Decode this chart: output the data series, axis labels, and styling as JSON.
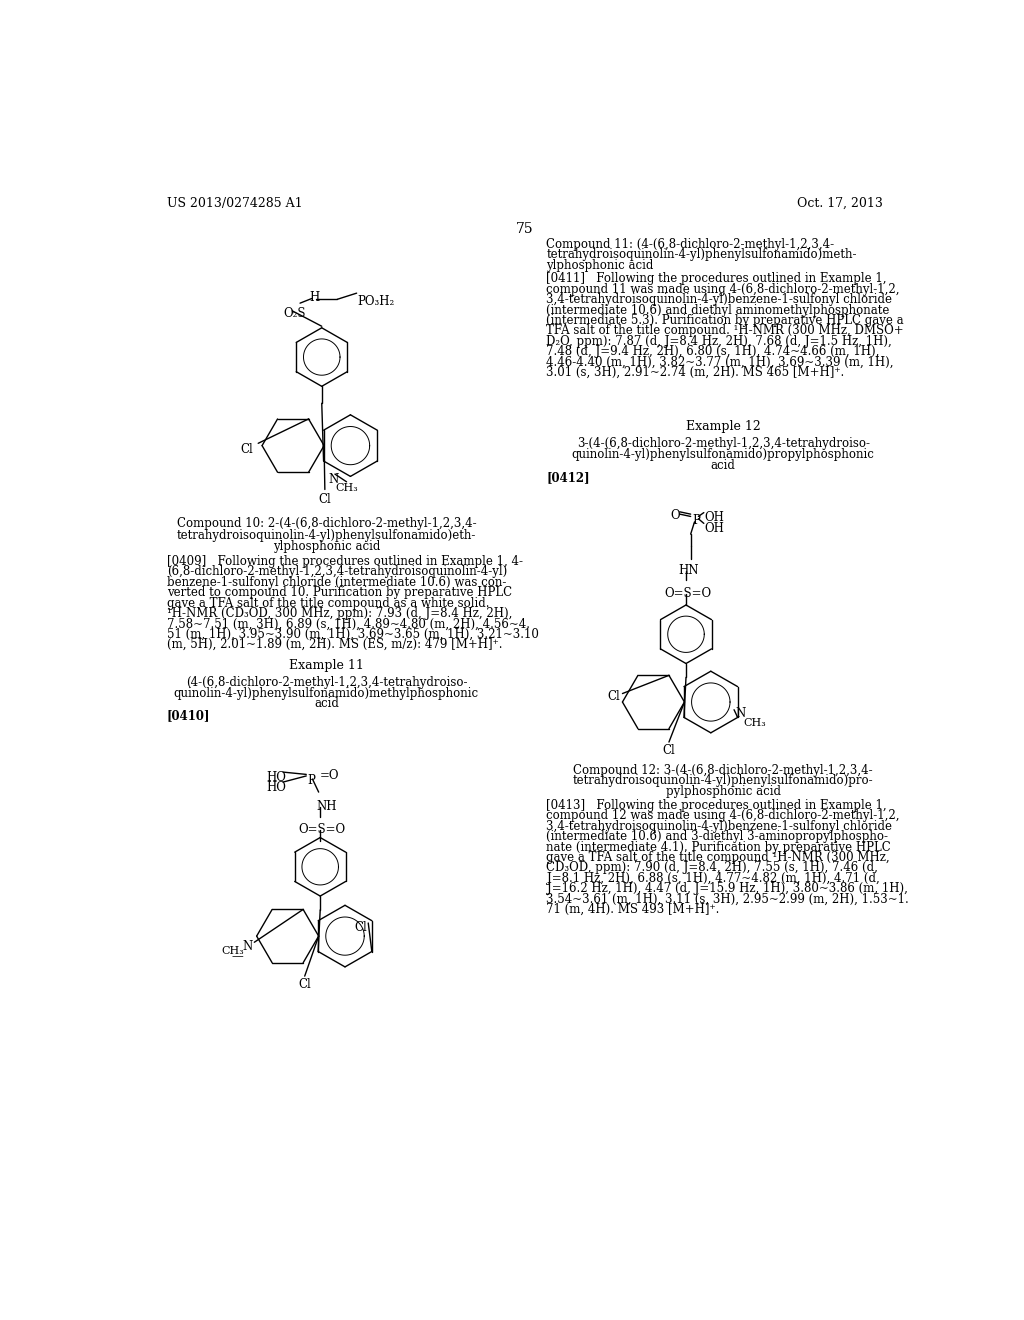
{
  "patent_number": "US 2013/0274285 A1",
  "patent_date": "Oct. 17, 2013",
  "page_number": "75",
  "background_color": "#ffffff",
  "compound10_caption": [
    "Compound 10: 2-(4-(6,8-dichloro-2-methyl-1,2,3,4-",
    "tetrahydroisoquinolin-4-yl)phenylsulfonamido)eth-",
    "ylphosphonic acid"
  ],
  "compound12_caption": [
    "Compound 12: 3-(4-(6,8-dichloro-2-methyl-1,2,3,4-",
    "tetrahydroisoquinolin-4-yl)phenylsulfonamido)pro-",
    "pylphosphonic acid"
  ],
  "compound11_title": [
    "Compound 11: (4-(6,8-dichloro-2-methyl-1,2,3,4-",
    "tetrahydroisoquinolin-4-yl)phenylsulfonamido)meth-",
    "ylphosphonic acid"
  ],
  "para0409": [
    "[0409]   Following the procedures outlined in Example 1, 4-",
    "(6,8-dichloro-2-methyl-1,2,3,4-tetrahydroisoquinolin-4-yl)",
    "benzene-1-sulfonyl chloride (intermediate 10.6) was con-",
    "verted to compound 10. Purification by preparative HPLC",
    "gave a TFA salt of the title compound as a white solid.",
    "¹H-NMR (CD₃OD, 300 MHz, ppm): 7.93 (d, J=8.4 Hz, 2H),",
    "7.58~7.51 (m, 3H), 6.89 (s, 1H), 4.89~4.80 (m, 2H), 4.56~4.",
    "51 (m, 1H), 3.95~3.90 (m, 1H), 3.69~3.65 (m, 1H), 3.21~3.10",
    "(m, 5H), 2.01~1.89 (m, 2H). MS (ES, m/z): 479 [M+H]⁺."
  ],
  "ex11_title": [
    "(4-(6,8-dichloro-2-methyl-1,2,3,4-tetrahydroiso-",
    "quinolin-4-yl)phenylsulfonamido)methylphosphonic",
    "acid"
  ],
  "para0410_tag": "[0410]",
  "example11": "Example 11",
  "example12": "Example 12",
  "ex12_title": [
    "3-(4-(6,8-dichloro-2-methyl-1,2,3,4-tetrahydroiso-",
    "quinolin-4-yl)phenylsulfonamido)propylphosphonic",
    "acid"
  ],
  "para0411_tag": "[0411]",
  "para0412_tag": "[0412]",
  "para0413_tag": "[0413]",
  "para0411": [
    "[0411]   Following the procedures outlined in Example 1,",
    "compound 11 was made using 4-(6,8-dichloro-2-methyl-1,2,",
    "3,4-tetrahydroisoquinolin-4-yl)benzene-1-sulfonyl chloride",
    "(intermediate 10.6) and diethyl aminomethylphosphonate",
    "(intermediate 5.3). Purification by preparative HPLC gave a",
    "TFA salt of the title compound. ¹H-NMR (300 MHz, DMSO+",
    "D₂O, ppm): 7.87 (d, J=8.4 Hz, 2H), 7.68 (d, J=1.5 Hz, 1H),",
    "7.48 (d, J=9.4 Hz, 2H), 6.80 (s, 1H), 4.74~4.66 (m, 1H),",
    "4.46-4.40 (m, 1H), 3.82~3.77 (m, 1H), 3.69~3.39 (m, 1H),",
    "3.01 (s, 3H), 2.91~2.74 (m, 2H). MS 465 [M+H]⁺."
  ],
  "para0413": [
    "[0413]   Following the procedures outlined in Example 1,",
    "compound 12 was made using 4-(6,8-dichloro-2-methyl-1,2,",
    "3,4-tetrahydroisoquinolin-4-yl)benzene-1-sulfonyl chloride",
    "(intermediate 10.6) and 3-diethyl 3-aminopropylphospho-",
    "nate (intermediate 4.1). Purification by preparative HPLC",
    "gave a TFA salt of the title compound ¹H-NMR (300 MHz,",
    "CD₃OD, ppm): 7.90 (d, J=8.4, 2H), 7.55 (s, 1H), 7.46 (d,",
    "J=8.1 Hz, 2H), 6.88 (s, 1H), 4.77~4.82 (m, 1H), 4.71 (d,",
    "J=16.2 Hz, 1H), 4.47 (d, J=15.9 Hz, 1H), 3.80~3.86 (m, 1H),",
    "3.54~3.61 (m, 1H), 3.11 (s, 3H), 2.95~2.99 (m, 2H), 1.53~1.",
    "71 (m, 4H). MS 493 [M+H]⁺."
  ]
}
